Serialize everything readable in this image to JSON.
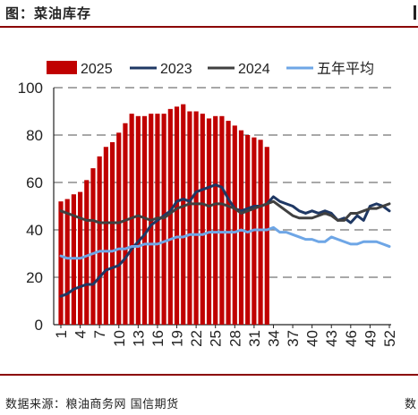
{
  "header": {
    "title": "图：菜油库存"
  },
  "footer": {
    "source": "数据来源：粮油商务网 国信期货",
    "page_tail": "数"
  },
  "chart_data": {
    "type": "bar+line",
    "title": "图：菜油库存",
    "xlabel": "",
    "ylabel": "",
    "ylim": [
      0,
      100
    ],
    "yticks": [
      0,
      20,
      40,
      60,
      80,
      100
    ],
    "xlim": [
      1,
      52
    ],
    "xticks": [
      1,
      4,
      7,
      10,
      13,
      16,
      19,
      22,
      25,
      28,
      31,
      34,
      37,
      40,
      43,
      46,
      49,
      52
    ],
    "grid": "horizontal dashed",
    "legend_position": "top",
    "series": [
      {
        "name": "2025",
        "kind": "bar",
        "color": "#c00000",
        "x": [
          1,
          2,
          3,
          4,
          5,
          6,
          7,
          8,
          9,
          10,
          11,
          12,
          13,
          14,
          15,
          16,
          17,
          18,
          19,
          20,
          21,
          22,
          23,
          24,
          25,
          26,
          27,
          28,
          29,
          30,
          31,
          32,
          33
        ],
        "values": [
          52,
          53,
          55,
          56,
          61,
          66,
          71,
          75,
          77,
          81,
          85,
          89,
          88,
          88,
          89,
          89,
          89,
          91,
          92,
          93,
          90,
          90,
          89,
          87,
          88,
          88,
          86,
          84,
          82,
          80,
          79,
          78,
          75
        ]
      },
      {
        "name": "2023",
        "kind": "line",
        "color": "#1f3864",
        "x": [
          1,
          2,
          3,
          4,
          5,
          6,
          7,
          8,
          9,
          10,
          11,
          12,
          13,
          14,
          15,
          16,
          17,
          18,
          19,
          20,
          21,
          22,
          23,
          24,
          25,
          26,
          27,
          28,
          29,
          30,
          31,
          32,
          33,
          34,
          35,
          36,
          37,
          38,
          39,
          40,
          41,
          42,
          43,
          44,
          45,
          46,
          47,
          48,
          49,
          50,
          51,
          52
        ],
        "values": [
          12,
          13,
          15,
          16,
          17,
          17,
          20,
          23,
          24,
          25,
          28,
          32,
          35,
          38,
          42,
          44,
          46,
          48,
          52,
          53,
          52,
          56,
          57,
          58,
          59,
          58,
          53,
          49,
          48,
          49,
          50,
          50,
          51,
          54,
          52,
          51,
          50,
          48,
          47,
          48,
          47,
          48,
          47,
          44,
          45,
          43,
          46,
          44,
          50,
          51,
          50,
          48
        ]
      },
      {
        "name": "2024",
        "kind": "line",
        "color": "#404040",
        "x": [
          1,
          2,
          3,
          4,
          5,
          6,
          7,
          8,
          9,
          10,
          11,
          12,
          13,
          14,
          15,
          16,
          17,
          18,
          19,
          20,
          21,
          22,
          23,
          24,
          25,
          26,
          27,
          28,
          29,
          30,
          31,
          32,
          33,
          34,
          35,
          36,
          37,
          38,
          39,
          40,
          41,
          42,
          43,
          44,
          45,
          46,
          47,
          48,
          49,
          50,
          51,
          52
        ],
        "values": [
          48,
          47,
          46,
          45,
          44,
          44,
          43,
          43,
          43,
          43,
          44,
          45,
          46,
          45,
          44,
          45,
          45,
          47,
          49,
          50,
          51,
          51,
          51,
          50,
          51,
          51,
          50,
          49,
          47,
          48,
          49,
          50,
          51,
          52,
          50,
          48,
          46,
          45,
          45,
          45,
          46,
          47,
          46,
          44,
          44,
          47,
          47,
          48,
          49,
          49,
          50,
          51
        ]
      },
      {
        "name": "五年平均",
        "kind": "line",
        "color": "#6ea6e6",
        "x": [
          1,
          2,
          3,
          4,
          5,
          6,
          7,
          8,
          9,
          10,
          11,
          12,
          13,
          14,
          15,
          16,
          17,
          18,
          19,
          20,
          21,
          22,
          23,
          24,
          25,
          26,
          27,
          28,
          29,
          30,
          31,
          32,
          33,
          34,
          35,
          36,
          37,
          38,
          39,
          40,
          41,
          42,
          43,
          44,
          45,
          46,
          47,
          48,
          49,
          50,
          51,
          52
        ],
        "values": [
          29,
          28,
          28,
          28,
          29,
          30,
          31,
          31,
          31,
          32,
          32,
          33,
          33,
          34,
          34,
          34,
          35,
          36,
          37,
          37,
          38,
          38,
          38,
          39,
          39,
          39,
          39,
          39,
          40,
          39,
          40,
          40,
          40,
          41,
          39,
          39,
          38,
          37,
          36,
          36,
          35,
          35,
          37,
          36,
          35,
          34,
          34,
          35,
          35,
          35,
          34,
          33
        ]
      }
    ]
  }
}
